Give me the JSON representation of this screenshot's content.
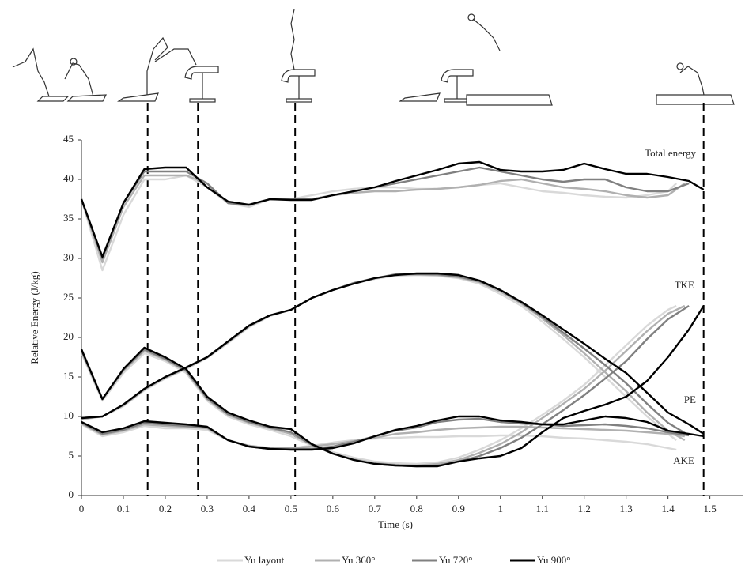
{
  "chart_data": {
    "type": "line",
    "x_label": "Time (s)",
    "y_label": "Relative Energy (J/kg)",
    "xlim": [
      0,
      1.58
    ],
    "xticks": [
      0,
      0.1,
      0.2,
      0.3,
      0.4,
      0.5,
      0.6,
      0.7,
      0.8,
      0.9,
      1,
      1.1,
      1.2,
      1.3,
      1.4,
      1.5
    ],
    "ylim": [
      0,
      45
    ],
    "yticks": [
      0,
      5,
      10,
      15,
      20,
      25,
      30,
      35,
      40,
      45
    ],
    "phase_times": [
      0.158,
      0.278,
      0.51,
      1.485
    ],
    "curve_labels": {
      "total": "Total energy",
      "tke": "TKE",
      "pe": "PE",
      "ake": "AKE"
    },
    "series": [
      {
        "name": "Yu layout",
        "color": "#d9d9d9",
        "x": [
          0,
          0.05,
          0.1,
          0.15,
          0.2,
          0.25,
          0.3,
          0.35,
          0.4,
          0.45,
          0.5,
          0.55,
          0.6,
          0.65,
          0.7,
          0.75,
          0.8,
          0.85,
          0.9,
          0.95,
          1,
          1.05,
          1.1,
          1.15,
          1.2,
          1.25,
          1.3,
          1.35,
          1.4,
          1.42
        ],
        "total": [
          37.5,
          28.5,
          35.5,
          40,
          40,
          40.5,
          39,
          37,
          36.5,
          37.5,
          37.5,
          38,
          38.5,
          38.8,
          39,
          39,
          38.8,
          38.8,
          39,
          39.3,
          39.5,
          39,
          38.5,
          38.3,
          38,
          37.8,
          37.7,
          38,
          38.5,
          39.5
        ],
        "pe": [
          9.6,
          10,
          11.3,
          13.3,
          14.8,
          16,
          17.4,
          19.3,
          21.3,
          22.7,
          23.5,
          25,
          26,
          26.8,
          27.4,
          27.8,
          27.9,
          27.8,
          27.5,
          26.8,
          25.5,
          24,
          22,
          19.8,
          17.5,
          15,
          12.5,
          10,
          7.8,
          7
        ],
        "tke": [
          18,
          12,
          15.5,
          18,
          17,
          15.5,
          12,
          10,
          9,
          8.3,
          7.5,
          6.3,
          5.5,
          4.8,
          4.3,
          4.1,
          4,
          4.2,
          4.8,
          5.8,
          7,
          8.5,
          10.2,
          12,
          14,
          16.5,
          19,
          21.5,
          23.5,
          24
        ],
        "ake": [
          9,
          7.5,
          8,
          8.8,
          8.5,
          8.5,
          8.3,
          7,
          6.3,
          6,
          6,
          6.3,
          6.7,
          7,
          7.2,
          7.3,
          7.4,
          7.4,
          7.5,
          7.5,
          7.6,
          7.6,
          7.5,
          7.3,
          7.2,
          7,
          6.8,
          6.5,
          6,
          5.8
        ]
      },
      {
        "name": "Yu 360°",
        "color": "#b0b0b0",
        "x": [
          0,
          0.05,
          0.1,
          0.15,
          0.2,
          0.25,
          0.3,
          0.35,
          0.4,
          0.45,
          0.5,
          0.55,
          0.6,
          0.65,
          0.7,
          0.75,
          0.8,
          0.85,
          0.9,
          0.95,
          1,
          1.05,
          1.1,
          1.15,
          1.2,
          1.25,
          1.3,
          1.35,
          1.4,
          1.44
        ],
        "total": [
          37.5,
          29.5,
          36.5,
          40.5,
          40.5,
          40.5,
          39.5,
          37,
          36.7,
          37.5,
          37.5,
          37.5,
          38,
          38.3,
          38.5,
          38.5,
          38.7,
          38.8,
          39,
          39.3,
          39.8,
          40,
          39.5,
          39,
          38.8,
          38.5,
          38,
          37.7,
          38,
          39.5
        ],
        "pe": [
          9.7,
          10,
          11.4,
          13.4,
          14.9,
          16.1,
          17.5,
          19.4,
          21.4,
          22.8,
          23.5,
          25,
          26,
          26.9,
          27.5,
          27.9,
          28,
          27.9,
          27.6,
          27,
          25.8,
          24.3,
          22.4,
          20.3,
          18,
          15.6,
          13.2,
          10.5,
          8.2,
          7
        ],
        "tke": [
          18.2,
          12.2,
          15.8,
          18.3,
          17.2,
          15.7,
          12.2,
          10.2,
          9.2,
          8.5,
          7.8,
          6.4,
          5.3,
          4.6,
          4.1,
          3.9,
          3.8,
          4,
          4.5,
          5.4,
          6.5,
          8,
          9.8,
          11.6,
          13.5,
          15.8,
          18.3,
          20.8,
          23,
          24
        ],
        "ake": [
          9.1,
          7.7,
          8.2,
          9,
          8.8,
          8.7,
          8.5,
          7,
          6.3,
          6,
          6,
          6.2,
          6.5,
          6.9,
          7.3,
          7.8,
          8,
          8.3,
          8.5,
          8.6,
          8.7,
          8.7,
          8.6,
          8.5,
          8.4,
          8.3,
          8.2,
          8,
          7.8,
          7.5
        ]
      },
      {
        "name": "Yu 720°",
        "color": "#808080",
        "x": [
          0,
          0.05,
          0.1,
          0.15,
          0.2,
          0.25,
          0.3,
          0.35,
          0.4,
          0.45,
          0.5,
          0.55,
          0.6,
          0.65,
          0.7,
          0.75,
          0.8,
          0.85,
          0.9,
          0.95,
          1,
          1.05,
          1.1,
          1.15,
          1.2,
          1.25,
          1.3,
          1.35,
          1.4,
          1.45
        ],
        "total": [
          37.5,
          30,
          37,
          41,
          41,
          41,
          39.5,
          37,
          36.8,
          37.5,
          37.5,
          37.5,
          38,
          38.5,
          39,
          39.5,
          40,
          40.5,
          41,
          41.5,
          41,
          40.5,
          40,
          39.7,
          40,
          40,
          39,
          38.5,
          38.5,
          39.5
        ],
        "pe": [
          9.8,
          10,
          11.5,
          13.5,
          15,
          16.2,
          17.5,
          19.5,
          21.5,
          22.8,
          23.5,
          25,
          26,
          26.9,
          27.5,
          28,
          28,
          28,
          27.7,
          27.1,
          26,
          24.4,
          22.6,
          20.6,
          18.6,
          16.5,
          14.2,
          11.6,
          9.2,
          7.6
        ],
        "tke": [
          18.4,
          12.2,
          15.9,
          18.5,
          17.3,
          15.8,
          12.3,
          10.3,
          9.3,
          8.6,
          8,
          6.4,
          5.3,
          4.5,
          4,
          3.8,
          3.7,
          3.8,
          4.3,
          5,
          6,
          7.3,
          9,
          10.8,
          12.7,
          14.8,
          17,
          19.8,
          22.3,
          24
        ],
        "ake": [
          9.2,
          7.8,
          8.3,
          9.2,
          9,
          8.8,
          8.6,
          7,
          6.2,
          5.9,
          5.9,
          5.9,
          6.2,
          6.8,
          7.5,
          8.2,
          8.6,
          9.3,
          9.6,
          9.7,
          9.3,
          9.1,
          9,
          8.8,
          8.9,
          9,
          8.8,
          8.5,
          8,
          7.6
        ]
      },
      {
        "name": "Yu 900°",
        "color": "#000000",
        "x": [
          0,
          0.05,
          0.1,
          0.15,
          0.2,
          0.25,
          0.3,
          0.35,
          0.4,
          0.45,
          0.5,
          0.55,
          0.6,
          0.65,
          0.7,
          0.75,
          0.8,
          0.85,
          0.9,
          0.95,
          1,
          1.05,
          1.1,
          1.15,
          1.2,
          1.25,
          1.3,
          1.35,
          1.4,
          1.45,
          1.485
        ],
        "total": [
          37.5,
          30.2,
          37,
          41.3,
          41.5,
          41.5,
          39,
          37.2,
          36.8,
          37.5,
          37.4,
          37.4,
          38,
          38.5,
          39,
          39.8,
          40.5,
          41.2,
          42,
          42.2,
          41.2,
          41,
          41,
          41.2,
          42,
          41.3,
          40.7,
          40.7,
          40.3,
          39.8,
          38.7
        ],
        "pe": [
          9.8,
          10,
          11.5,
          13.5,
          15,
          16.2,
          17.5,
          19.5,
          21.5,
          22.8,
          23.5,
          25,
          26,
          26.8,
          27.5,
          27.9,
          28.1,
          28.1,
          27.9,
          27.2,
          26,
          24.5,
          22.8,
          21,
          19.2,
          17.3,
          15.5,
          13,
          10.5,
          9,
          7.8
        ],
        "tke": [
          18.5,
          12.2,
          16,
          18.7,
          17.5,
          16,
          12.5,
          10.5,
          9.5,
          8.7,
          8.4,
          6.5,
          5.3,
          4.5,
          4,
          3.8,
          3.7,
          3.7,
          4.3,
          4.7,
          5,
          6,
          8,
          9.8,
          10.7,
          11.5,
          12.5,
          14.5,
          17.5,
          21,
          24
        ],
        "ake": [
          9.3,
          8,
          8.5,
          9.4,
          9.2,
          9,
          8.7,
          7,
          6.2,
          5.9,
          5.8,
          5.8,
          6,
          6.6,
          7.5,
          8.3,
          8.8,
          9.5,
          10,
          10,
          9.5,
          9.3,
          9,
          9,
          9.5,
          10,
          9.8,
          9.3,
          8.2,
          7.8,
          7.5
        ]
      }
    ]
  }
}
